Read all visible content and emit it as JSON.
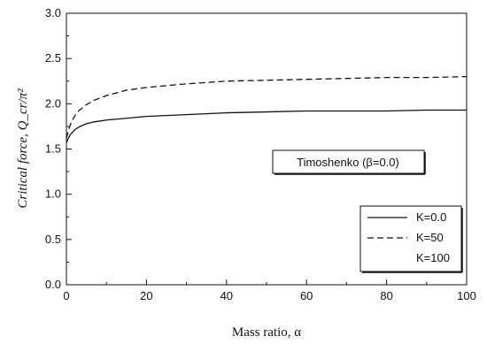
{
  "chart_data": {
    "type": "line",
    "xlabel": "Mass ratio, α",
    "ylabel": "Critical force, Q_cr/π²",
    "xlim": [
      0,
      100
    ],
    "ylim": [
      0.0,
      3.0
    ],
    "x_ticks": [
      "0",
      "20",
      "40",
      "60",
      "80",
      "100"
    ],
    "y_ticks": [
      "0.0",
      "0.5",
      "1.0",
      "1.5",
      "2.0",
      "2.5",
      "3.0"
    ],
    "grid": false,
    "legend_placement": "bottom-right",
    "annotation": "Timoshenko (β=0.0)",
    "series": [
      {
        "name": "K=0.0",
        "style": "solid",
        "x": [
          0,
          0.5,
          1,
          2,
          3,
          5,
          7,
          10,
          15,
          20,
          30,
          40,
          50,
          60,
          70,
          80,
          90,
          100
        ],
        "y": [
          1.57,
          1.62,
          1.66,
          1.71,
          1.74,
          1.78,
          1.8,
          1.82,
          1.84,
          1.86,
          1.88,
          1.9,
          1.91,
          1.92,
          1.92,
          1.92,
          1.93,
          1.93
        ]
      },
      {
        "name": "K=50",
        "style": "dashed",
        "x": [
          0,
          0.5,
          1,
          2,
          3,
          5,
          7,
          10,
          15,
          20,
          30,
          40,
          50,
          60,
          70,
          80,
          90,
          100
        ],
        "y": [
          1.62,
          1.7,
          1.77,
          1.86,
          1.92,
          1.99,
          2.04,
          2.09,
          2.15,
          2.18,
          2.22,
          2.25,
          2.26,
          2.27,
          2.28,
          2.29,
          2.29,
          2.3
        ]
      },
      {
        "name": "K=100",
        "style": "none",
        "x": [],
        "y": []
      }
    ]
  }
}
